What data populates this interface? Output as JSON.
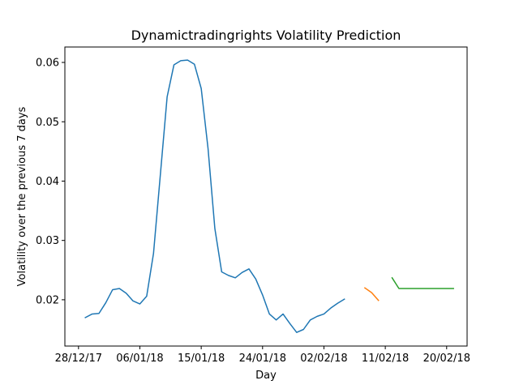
{
  "chart_data": {
    "type": "line",
    "title": "Dynamictradingrights Volatility Prediction",
    "xlabel": "Day",
    "ylabel": "Volatility over the previous 7 days",
    "x_type": "date",
    "xlim": [
      "2017-12-26",
      "2018-02-23"
    ],
    "ylim": [
      0.0122,
      0.0626
    ],
    "x_ticks": [
      {
        "date": "2017-12-28",
        "label": "28/12/17"
      },
      {
        "date": "2018-01-06",
        "label": "06/01/18"
      },
      {
        "date": "2018-01-15",
        "label": "15/01/18"
      },
      {
        "date": "2018-01-24",
        "label": "24/01/18"
      },
      {
        "date": "2018-02-02",
        "label": "02/02/18"
      },
      {
        "date": "2018-02-11",
        "label": "11/02/18"
      },
      {
        "date": "2018-02-20",
        "label": "20/02/18"
      }
    ],
    "y_ticks": [
      {
        "value": 0.02,
        "label": "0.02"
      },
      {
        "value": 0.03,
        "label": "0.03"
      },
      {
        "value": 0.04,
        "label": "0.04"
      },
      {
        "value": 0.05,
        "label": "0.05"
      },
      {
        "value": 0.06,
        "label": "0.06"
      }
    ],
    "grid": false,
    "series": [
      {
        "color": "#1f77b4",
        "points": [
          {
            "x": "2017-12-29",
            "y": 0.017
          },
          {
            "x": "2017-12-30",
            "y": 0.0176
          },
          {
            "x": "2017-12-31",
            "y": 0.0177
          },
          {
            "x": "2018-01-01",
            "y": 0.0195
          },
          {
            "x": "2018-01-02",
            "y": 0.0217
          },
          {
            "x": "2018-01-03",
            "y": 0.0219
          },
          {
            "x": "2018-01-04",
            "y": 0.0211
          },
          {
            "x": "2018-01-05",
            "y": 0.0198
          },
          {
            "x": "2018-01-06",
            "y": 0.0193
          },
          {
            "x": "2018-01-07",
            "y": 0.0206
          },
          {
            "x": "2018-01-08",
            "y": 0.0278
          },
          {
            "x": "2018-01-09",
            "y": 0.041
          },
          {
            "x": "2018-01-10",
            "y": 0.0542
          },
          {
            "x": "2018-01-11",
            "y": 0.0596
          },
          {
            "x": "2018-01-12",
            "y": 0.0603
          },
          {
            "x": "2018-01-13",
            "y": 0.0604
          },
          {
            "x": "2018-01-14",
            "y": 0.0597
          },
          {
            "x": "2018-01-15",
            "y": 0.0556
          },
          {
            "x": "2018-01-16",
            "y": 0.0455
          },
          {
            "x": "2018-01-17",
            "y": 0.032
          },
          {
            "x": "2018-01-18",
            "y": 0.0247
          },
          {
            "x": "2018-01-19",
            "y": 0.0241
          },
          {
            "x": "2018-01-20",
            "y": 0.0237
          },
          {
            "x": "2018-01-21",
            "y": 0.0246
          },
          {
            "x": "2018-01-22",
            "y": 0.0252
          },
          {
            "x": "2018-01-23",
            "y": 0.0235
          },
          {
            "x": "2018-01-24",
            "y": 0.0208
          },
          {
            "x": "2018-01-25",
            "y": 0.0176
          },
          {
            "x": "2018-01-26",
            "y": 0.0166
          },
          {
            "x": "2018-01-27",
            "y": 0.0176
          },
          {
            "x": "2018-01-28",
            "y": 0.016
          },
          {
            "x": "2018-01-29",
            "y": 0.0145
          },
          {
            "x": "2018-01-30",
            "y": 0.015
          },
          {
            "x": "2018-01-31",
            "y": 0.0166
          },
          {
            "x": "2018-02-01",
            "y": 0.0172
          },
          {
            "x": "2018-02-02",
            "y": 0.0176
          },
          {
            "x": "2018-02-03",
            "y": 0.0186
          },
          {
            "x": "2018-02-04",
            "y": 0.0194
          },
          {
            "x": "2018-02-05",
            "y": 0.0201
          }
        ]
      },
      {
        "color": "#ff7f0e",
        "points": [
          {
            "x": "2018-02-08",
            "y": 0.022
          },
          {
            "x": "2018-02-09",
            "y": 0.0212
          },
          {
            "x": "2018-02-10",
            "y": 0.0199
          }
        ]
      },
      {
        "color": "#2ca02c",
        "points": [
          {
            "x": "2018-02-12",
            "y": 0.0237
          },
          {
            "x": "2018-02-13",
            "y": 0.0219
          },
          {
            "x": "2018-02-14",
            "y": 0.0219
          },
          {
            "x": "2018-02-15",
            "y": 0.0219
          },
          {
            "x": "2018-02-16",
            "y": 0.0219
          },
          {
            "x": "2018-02-17",
            "y": 0.0219
          },
          {
            "x": "2018-02-18",
            "y": 0.0219
          },
          {
            "x": "2018-02-19",
            "y": 0.0219
          },
          {
            "x": "2018-02-20",
            "y": 0.0219
          },
          {
            "x": "2018-02-21",
            "y": 0.0219
          }
        ]
      }
    ]
  }
}
